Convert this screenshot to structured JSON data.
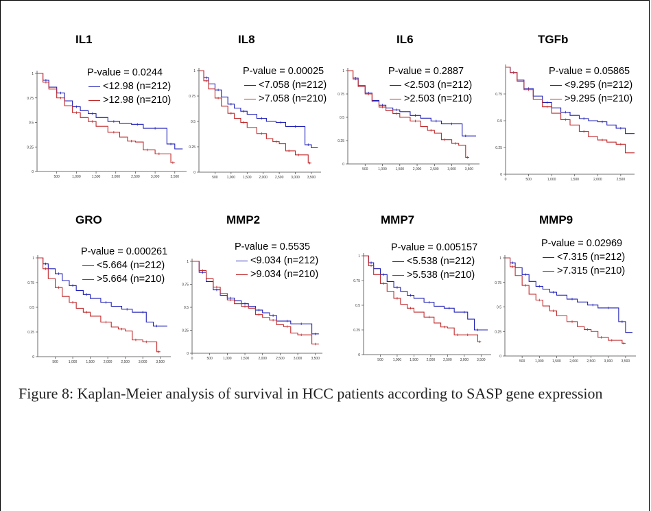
{
  "caption": "Figure 8: Kaplan-Meier analysis of survival in HCC patients according to SASP gene expression",
  "colors": {
    "low": "#1f1fb8",
    "high": "#c0282a"
  },
  "chart_data": [
    {
      "type": "line",
      "title": "IL1",
      "p_value_label": "P-value = 0.0244",
      "legend": [
        "<12.98 (n=212)",
        ">12.98 (n=210)"
      ],
      "yticks": [
        "1",
        "0.75",
        "0.5",
        "0.25",
        "0"
      ],
      "xticks": [
        "500",
        "1,000",
        "1,500",
        "2,000",
        "2,500",
        "3,000",
        "3,500"
      ],
      "xlim": [
        0,
        3800
      ],
      "ylim": [
        0,
        1
      ],
      "series": [
        {
          "x": [
            0,
            150,
            300,
            500,
            700,
            900,
            1100,
            1300,
            1500,
            1800,
            2100,
            2400,
            2700,
            2900,
            3100,
            3300,
            3500,
            3700
          ],
          "y": [
            1,
            0.93,
            0.86,
            0.8,
            0.72,
            0.66,
            0.62,
            0.59,
            0.55,
            0.51,
            0.49,
            0.48,
            0.44,
            0.44,
            0.44,
            0.28,
            0.23,
            0.23
          ]
        },
        {
          "x": [
            0,
            150,
            300,
            500,
            700,
            900,
            1100,
            1300,
            1500,
            1800,
            2100,
            2300,
            2500,
            2700,
            2900,
            3000,
            3200,
            3400,
            3500
          ],
          "y": [
            1,
            0.91,
            0.84,
            0.75,
            0.67,
            0.6,
            0.55,
            0.51,
            0.46,
            0.4,
            0.35,
            0.31,
            0.3,
            0.22,
            0.22,
            0.18,
            0.18,
            0.09,
            0.09
          ]
        }
      ]
    },
    {
      "type": "line",
      "title": "IL8",
      "p_value_label": "P-value = 0.00025",
      "legend": [
        "<7.058 (n=212)",
        ">7.058 (n=210)"
      ],
      "yticks": [
        "1",
        "0.75",
        "0.5",
        "0.25",
        "0"
      ],
      "xticks": [
        "500",
        "1,000",
        "1,500",
        "2,000",
        "2,500",
        "3,000",
        "3,500"
      ],
      "xlim": [
        0,
        3800
      ],
      "ylim": [
        0,
        1
      ],
      "series": [
        {
          "x": [
            0,
            150,
            300,
            500,
            700,
            900,
            1100,
            1300,
            1500,
            1800,
            2100,
            2400,
            2700,
            2900,
            3100,
            3300,
            3500,
            3700
          ],
          "y": [
            1,
            0.93,
            0.87,
            0.81,
            0.74,
            0.67,
            0.63,
            0.6,
            0.57,
            0.53,
            0.5,
            0.49,
            0.45,
            0.45,
            0.45,
            0.27,
            0.24,
            0.24
          ]
        },
        {
          "x": [
            0,
            150,
            300,
            500,
            700,
            900,
            1100,
            1300,
            1500,
            1800,
            2100,
            2300,
            2500,
            2700,
            2900,
            3000,
            3200,
            3400,
            3500
          ],
          "y": [
            1,
            0.9,
            0.82,
            0.73,
            0.65,
            0.58,
            0.53,
            0.49,
            0.44,
            0.38,
            0.33,
            0.3,
            0.28,
            0.21,
            0.21,
            0.17,
            0.17,
            0.09,
            0.09
          ]
        }
      ]
    },
    {
      "type": "line",
      "title": "IL6",
      "p_value_label": "P-value = 0.2887",
      "legend": [
        "<2.503 (n=212)",
        ">2.503 (n=210)"
      ],
      "yticks": [
        "1",
        "0.75",
        "0.5",
        "0.25",
        "0"
      ],
      "xticks": [
        "500",
        "1,000",
        "1,500",
        "2,000",
        "2,500",
        "3,000",
        "3,500"
      ],
      "xlim": [
        0,
        3800
      ],
      "ylim": [
        0,
        1
      ],
      "series": [
        {
          "x": [
            0,
            150,
            300,
            500,
            700,
            900,
            1100,
            1300,
            1500,
            1800,
            2100,
            2400,
            2700,
            2900,
            3100,
            3300,
            3500,
            3700
          ],
          "y": [
            1,
            0.92,
            0.84,
            0.76,
            0.68,
            0.63,
            0.6,
            0.58,
            0.56,
            0.52,
            0.49,
            0.46,
            0.43,
            0.43,
            0.43,
            0.3,
            0.3,
            0.3
          ]
        },
        {
          "x": [
            0,
            150,
            300,
            500,
            700,
            900,
            1100,
            1300,
            1500,
            1800,
            2100,
            2300,
            2500,
            2700,
            2900,
            3000,
            3200,
            3400,
            3500
          ],
          "y": [
            1,
            0.91,
            0.83,
            0.75,
            0.67,
            0.61,
            0.57,
            0.54,
            0.5,
            0.46,
            0.4,
            0.36,
            0.33,
            0.26,
            0.26,
            0.22,
            0.2,
            0.07,
            0.07
          ]
        }
      ]
    },
    {
      "type": "line",
      "title": "TGFb",
      "p_value_label": "P-value = 0.05865",
      "legend": [
        "<9.295 (n=212)",
        ">9.295 (n=210)"
      ],
      "yticks": [
        "0.75",
        "0.5",
        "0.25",
        "0"
      ],
      "xticks": [
        "0",
        "500",
        "1,000",
        "1,500",
        "2,000",
        "2,500"
      ],
      "xlim": [
        0,
        2800
      ],
      "ylim": [
        0,
        1
      ],
      "series": [
        {
          "x": [
            0,
            100,
            250,
            400,
            600,
            800,
            1000,
            1200,
            1400,
            1600,
            1800,
            2000,
            2200,
            2400,
            2600,
            2800
          ],
          "y": [
            1,
            0.95,
            0.88,
            0.8,
            0.73,
            0.67,
            0.62,
            0.58,
            0.55,
            0.52,
            0.5,
            0.49,
            0.46,
            0.43,
            0.38,
            0.38
          ]
        },
        {
          "x": [
            0,
            100,
            250,
            400,
            600,
            800,
            1000,
            1200,
            1400,
            1600,
            1800,
            2000,
            2200,
            2400,
            2600,
            2800
          ],
          "y": [
            1,
            0.95,
            0.87,
            0.79,
            0.7,
            0.63,
            0.57,
            0.51,
            0.46,
            0.4,
            0.35,
            0.32,
            0.3,
            0.28,
            0.2,
            0.2
          ]
        }
      ]
    },
    {
      "type": "line",
      "title": "GRO",
      "p_value_label": "P-value = 0.000261",
      "legend": [
        "<5.664 (n=212)",
        ">5.664 (n=210)"
      ],
      "yticks": [
        "1",
        "0.75",
        "0.5",
        "0.25",
        "0"
      ],
      "xticks": [
        "500",
        "1,000",
        "1,500",
        "2,000",
        "2,500",
        "3,000",
        "3,500"
      ],
      "xlim": [
        0,
        3800
      ],
      "ylim": [
        0,
        1
      ],
      "series": [
        {
          "x": [
            0,
            150,
            300,
            500,
            700,
            900,
            1100,
            1300,
            1500,
            1800,
            2100,
            2400,
            2700,
            2900,
            3100,
            3300,
            3500,
            3700
          ],
          "y": [
            1,
            0.94,
            0.89,
            0.84,
            0.77,
            0.72,
            0.67,
            0.63,
            0.59,
            0.55,
            0.51,
            0.48,
            0.45,
            0.45,
            0.35,
            0.31,
            0.31,
            0.31
          ]
        },
        {
          "x": [
            0,
            150,
            300,
            500,
            700,
            900,
            1100,
            1300,
            1500,
            1800,
            2100,
            2300,
            2500,
            2700,
            2900,
            3000,
            3200,
            3400,
            3500
          ],
          "y": [
            1,
            0.89,
            0.79,
            0.7,
            0.61,
            0.55,
            0.49,
            0.45,
            0.41,
            0.35,
            0.3,
            0.28,
            0.26,
            0.17,
            0.17,
            0.15,
            0.15,
            0.05,
            0.05
          ]
        }
      ]
    },
    {
      "type": "line",
      "title": "MMP2",
      "p_value_label": "P-value = 0.5535",
      "legend": [
        "<9.034 (n=212)",
        ">9.034 (n=210)"
      ],
      "yticks": [
        "1",
        "0.75",
        "0.5",
        "0.25",
        "0"
      ],
      "xticks": [
        "0",
        "500",
        "1,000",
        "1,500",
        "2,000",
        "2,500",
        "3,000",
        "3,500"
      ],
      "xlim": [
        0,
        3700
      ],
      "ylim": [
        0,
        1
      ],
      "series": [
        {
          "x": [
            0,
            200,
            400,
            600,
            800,
            1000,
            1200,
            1400,
            1600,
            1800,
            2000,
            2200,
            2400,
            2600,
            2800,
            3000,
            3200,
            3400,
            3600
          ],
          "y": [
            1,
            0.88,
            0.78,
            0.69,
            0.63,
            0.6,
            0.57,
            0.54,
            0.51,
            0.47,
            0.44,
            0.41,
            0.35,
            0.35,
            0.32,
            0.32,
            0.32,
            0.21,
            0.21
          ]
        },
        {
          "x": [
            0,
            200,
            400,
            600,
            800,
            1000,
            1200,
            1400,
            1600,
            1800,
            2000,
            2200,
            2400,
            2600,
            2800,
            3000,
            3200,
            3400,
            3600
          ],
          "y": [
            1,
            0.9,
            0.81,
            0.72,
            0.65,
            0.58,
            0.54,
            0.51,
            0.49,
            0.42,
            0.39,
            0.36,
            0.31,
            0.29,
            0.22,
            0.2,
            0.2,
            0.1,
            0.1
          ]
        }
      ]
    },
    {
      "type": "line",
      "title": "MMP7",
      "p_value_label": "P-value = 0.005157",
      "legend": [
        "<5.538 (n=212)",
        ">5.538 (n=210)"
      ],
      "yticks": [
        "1",
        "0.75",
        "0.5",
        "0.25",
        "0"
      ],
      "xticks": [
        "500",
        "1,000",
        "1,500",
        "2,000",
        "2,500",
        "3,000",
        "3,500"
      ],
      "xlim": [
        0,
        3800
      ],
      "ylim": [
        0,
        1
      ],
      "series": [
        {
          "x": [
            0,
            150,
            300,
            500,
            700,
            900,
            1100,
            1300,
            1500,
            1800,
            2100,
            2400,
            2700,
            2900,
            3100,
            3300,
            3500,
            3700
          ],
          "y": [
            1,
            0.93,
            0.87,
            0.81,
            0.74,
            0.68,
            0.64,
            0.6,
            0.57,
            0.53,
            0.49,
            0.47,
            0.43,
            0.43,
            0.36,
            0.25,
            0.25,
            0.25
          ]
        },
        {
          "x": [
            0,
            150,
            300,
            500,
            700,
            900,
            1100,
            1300,
            1500,
            1800,
            2100,
            2300,
            2500,
            2700,
            2900,
            3000,
            3200,
            3400,
            3500
          ],
          "y": [
            1,
            0.9,
            0.81,
            0.72,
            0.64,
            0.57,
            0.51,
            0.47,
            0.43,
            0.38,
            0.32,
            0.28,
            0.27,
            0.2,
            0.2,
            0.2,
            0.2,
            0.13,
            0.13
          ]
        }
      ]
    },
    {
      "type": "line",
      "title": "MMP9",
      "p_value_label": "P-value = 0.02969",
      "legend": [
        "<7.315 (n=212)",
        ">7.315 (n=210)"
      ],
      "yticks": [
        "1",
        "0.75",
        "0.5",
        "0.25",
        "0"
      ],
      "xticks": [
        "500",
        "1,000",
        "1,500",
        "2,000",
        "2,500",
        "3,000",
        "3,500"
      ],
      "xlim": [
        0,
        3800
      ],
      "ylim": [
        0,
        1
      ],
      "series": [
        {
          "x": [
            0,
            150,
            300,
            500,
            700,
            900,
            1100,
            1300,
            1500,
            1800,
            2100,
            2400,
            2700,
            2900,
            3100,
            3300,
            3500,
            3700
          ],
          "y": [
            1,
            0.95,
            0.9,
            0.83,
            0.76,
            0.71,
            0.68,
            0.65,
            0.62,
            0.58,
            0.55,
            0.52,
            0.49,
            0.49,
            0.49,
            0.35,
            0.24,
            0.24
          ]
        },
        {
          "x": [
            0,
            150,
            300,
            500,
            700,
            900,
            1100,
            1300,
            1500,
            1800,
            2100,
            2300,
            2500,
            2700,
            2900,
            3000,
            3200,
            3400,
            3500
          ],
          "y": [
            1,
            0.91,
            0.82,
            0.72,
            0.63,
            0.57,
            0.51,
            0.46,
            0.41,
            0.35,
            0.3,
            0.27,
            0.25,
            0.19,
            0.19,
            0.16,
            0.16,
            0.13,
            0.13
          ]
        }
      ]
    }
  ]
}
